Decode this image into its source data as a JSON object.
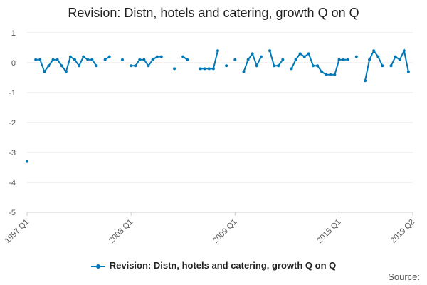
{
  "chart_data": {
    "type": "line",
    "title": "Revision: Distn, hotels and catering, growth Q on Q",
    "xlabel": "",
    "ylabel": "",
    "ylim": [
      -5,
      1
    ],
    "yticks": [
      1,
      0,
      -1,
      -2,
      -3,
      -4,
      -5
    ],
    "x_tick_labels": [
      "1997 Q1",
      "2003 Q1",
      "2009 Q1",
      "2015 Q1",
      "2019 Q2"
    ],
    "grid": true,
    "legend_position": "bottom",
    "series": [
      {
        "name": "Revision: Distn, hotels and catering, growth Q on Q",
        "color": "#0077b6",
        "x": [
          "1997 Q1",
          "1997 Q2",
          "1997 Q3",
          "1997 Q4",
          "1998 Q1",
          "1998 Q2",
          "1998 Q3",
          "1998 Q4",
          "1999 Q1",
          "1999 Q2",
          "1999 Q3",
          "1999 Q4",
          "2000 Q1",
          "2000 Q2",
          "2000 Q3",
          "2000 Q4",
          "2001 Q1",
          "2001 Q2",
          "2001 Q3",
          "2001 Q4",
          "2002 Q1",
          "2002 Q2",
          "2002 Q3",
          "2002 Q4",
          "2003 Q1",
          "2003 Q2",
          "2003 Q3",
          "2003 Q4",
          "2004 Q1",
          "2004 Q2",
          "2004 Q3",
          "2004 Q4",
          "2005 Q1",
          "2005 Q2",
          "2005 Q3",
          "2005 Q4",
          "2006 Q1",
          "2006 Q2",
          "2006 Q3",
          "2006 Q4",
          "2007 Q1",
          "2007 Q2",
          "2007 Q3",
          "2007 Q4",
          "2008 Q1",
          "2008 Q2",
          "2008 Q3",
          "2008 Q4",
          "2009 Q1",
          "2009 Q2",
          "2009 Q3",
          "2009 Q4",
          "2010 Q1",
          "2010 Q2",
          "2010 Q3",
          "2010 Q4",
          "2011 Q1",
          "2011 Q2",
          "2011 Q3",
          "2011 Q4",
          "2012 Q1",
          "2012 Q2",
          "2012 Q3",
          "2012 Q4",
          "2013 Q1",
          "2013 Q2",
          "2013 Q3",
          "2013 Q4",
          "2014 Q1",
          "2014 Q2",
          "2014 Q3",
          "2014 Q4",
          "2015 Q1",
          "2015 Q2",
          "2015 Q3",
          "2015 Q4",
          "2016 Q1",
          "2016 Q2",
          "2016 Q3",
          "2016 Q4",
          "2017 Q1",
          "2017 Q2",
          "2017 Q3",
          "2017 Q4",
          "2018 Q1",
          "2018 Q2",
          "2018 Q3",
          "2018 Q4",
          "2019 Q1",
          "2019 Q2"
        ],
        "values": [
          -3.3,
          null,
          0.1,
          0.1,
          -0.3,
          -0.1,
          0.1,
          0.1,
          -0.1,
          -0.3,
          0.2,
          0.1,
          -0.1,
          0.2,
          0.1,
          0.1,
          -0.1,
          null,
          0.1,
          0.2,
          null,
          null,
          0.1,
          null,
          -0.1,
          -0.1,
          0.1,
          0.1,
          -0.1,
          0.1,
          0.2,
          0.2,
          null,
          null,
          -0.2,
          null,
          0.2,
          0.1,
          null,
          null,
          -0.2,
          -0.2,
          -0.2,
          -0.2,
          0.4,
          null,
          -0.1,
          null,
          0.1,
          null,
          -0.3,
          0.1,
          0.3,
          -0.1,
          0.2,
          null,
          0.4,
          -0.1,
          -0.1,
          0.1,
          null,
          -0.2,
          0.1,
          0.3,
          0.2,
          0.3,
          -0.1,
          -0.1,
          -0.3,
          -0.4,
          -0.4,
          -0.4,
          0.1,
          0.1,
          0.1,
          null,
          0.2,
          null,
          -0.6,
          0.1,
          0.4,
          0.2,
          -0.1,
          null,
          -0.1,
          0.2,
          0.1,
          0.4,
          -0.3,
          null
        ]
      }
    ]
  },
  "legend": {
    "label": "Revision: Distn, hotels and catering, growth Q on Q"
  },
  "footer": {
    "source": "Source:"
  }
}
